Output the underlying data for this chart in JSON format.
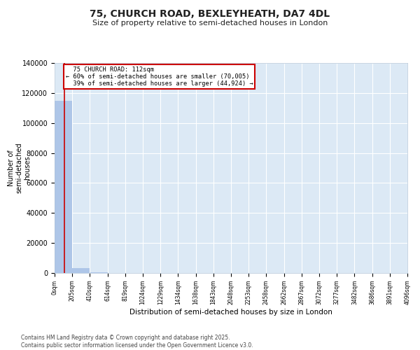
{
  "title_line1": "75, CHURCH ROAD, BEXLEYHEATH, DA7 4DL",
  "title_line2": "Size of property relative to semi-detached houses in London",
  "xlabel": "Distribution of semi-detached houses by size in London",
  "ylabel": "Number of\nsemi-detached\nhouses",
  "property_size": 112,
  "property_label": "75 CHURCH ROAD: 112sqm",
  "pct_smaller": 60,
  "pct_larger": 39,
  "num_smaller": 70005,
  "num_larger": 44924,
  "bar_color": "#aec6e8",
  "line_color": "#cc0000",
  "annotation_box_color": "#cc0000",
  "background_color": "#dce9f5",
  "grid_color": "#ffffff",
  "fig_background": "#ffffff",
  "bin_edges": [
    0,
    205,
    410,
    614,
    819,
    1024,
    1229,
    1434,
    1638,
    1843,
    2048,
    2253,
    2458,
    2662,
    2867,
    3072,
    3277,
    3482,
    3686,
    3891,
    4096
  ],
  "bin_counts": [
    114929,
    3076,
    424,
    126,
    55,
    28,
    17,
    9,
    5,
    5,
    3,
    3,
    2,
    1,
    1,
    1,
    1,
    1,
    1,
    1
  ],
  "tick_labels": [
    "0sqm",
    "205sqm",
    "410sqm",
    "614sqm",
    "819sqm",
    "1024sqm",
    "1229sqm",
    "1434sqm",
    "1638sqm",
    "1843sqm",
    "2048sqm",
    "2253sqm",
    "2458sqm",
    "2662sqm",
    "2867sqm",
    "3072sqm",
    "3277sqm",
    "3482sqm",
    "3686sqm",
    "3891sqm",
    "4096sqm"
  ],
  "footer_line1": "Contains HM Land Registry data © Crown copyright and database right 2025.",
  "footer_line2": "Contains public sector information licensed under the Open Government Licence v3.0.",
  "ylim": [
    0,
    140000
  ],
  "yticks": [
    0,
    20000,
    40000,
    60000,
    80000,
    100000,
    120000,
    140000
  ]
}
